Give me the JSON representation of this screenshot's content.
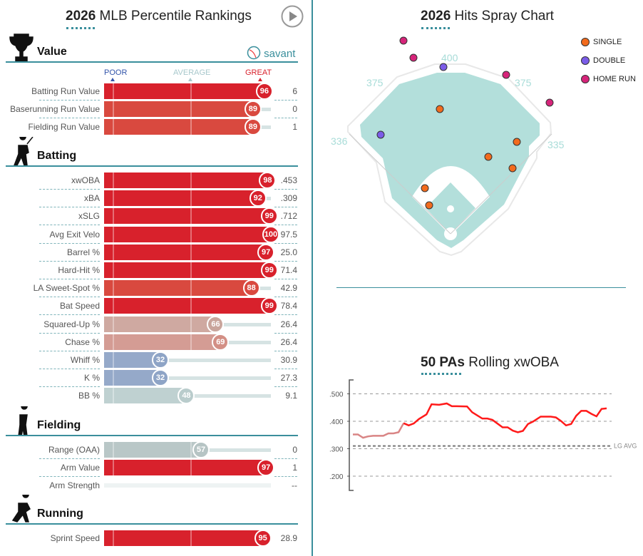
{
  "percentile": {
    "title_bold": "2026",
    "title_rest": " MLB Percentile Rankings",
    "play_icon": "play-icon",
    "brand": "savant",
    "scale": {
      "poor": "POOR",
      "average": "AVERAGE",
      "great": "GREAT"
    },
    "sections": [
      {
        "name": "Value",
        "icon": "trophy-icon",
        "rows": [
          {
            "label": "Batting Run Value",
            "pct": 96,
            "value": "6"
          },
          {
            "label": "Baserunning Run Value",
            "pct": 89,
            "value": "0"
          },
          {
            "label": "Fielding Run Value",
            "pct": 89,
            "value": "1"
          }
        ]
      },
      {
        "name": "Batting",
        "icon": "batter-icon",
        "rows": [
          {
            "label": "xwOBA",
            "pct": 98,
            "value": ".453"
          },
          {
            "label": "xBA",
            "pct": 92,
            "value": ".309"
          },
          {
            "label": "xSLG",
            "pct": 99,
            "value": ".712"
          },
          {
            "label": "Avg Exit Velo",
            "pct": 100,
            "value": "97.5"
          },
          {
            "label": "Barrel %",
            "pct": 97,
            "value": "25.0"
          },
          {
            "label": "Hard-Hit %",
            "pct": 99,
            "value": "71.4"
          },
          {
            "label": "LA Sweet-Spot %",
            "pct": 88,
            "value": "42.9"
          },
          {
            "label": "Bat Speed",
            "pct": 99,
            "value": "78.4"
          },
          {
            "label": "Squared-Up %",
            "pct": 66,
            "value": "26.4"
          },
          {
            "label": "Chase %",
            "pct": 69,
            "value": "26.4"
          },
          {
            "label": "Whiff %",
            "pct": 32,
            "value": "30.9"
          },
          {
            "label": "K %",
            "pct": 32,
            "value": "27.3"
          },
          {
            "label": "BB %",
            "pct": 48,
            "value": "9.1"
          }
        ]
      },
      {
        "name": "Fielding",
        "icon": "fielder-icon",
        "rows": [
          {
            "label": "Range (OAA)",
            "pct": 57,
            "value": "0"
          },
          {
            "label": "Arm Value",
            "pct": 97,
            "value": "1"
          },
          {
            "label": "Arm Strength",
            "pct": null,
            "value": "--"
          }
        ]
      },
      {
        "name": "Running",
        "icon": "runner-icon",
        "rows": [
          {
            "label": "Sprint Speed",
            "pct": 95,
            "value": "28.9"
          }
        ]
      }
    ]
  },
  "spray": {
    "title_bold": "2026",
    "title_rest": " Hits Spray Chart",
    "distances": {
      "cf": "400",
      "lc": "375",
      "rc": "375",
      "lf": "336",
      "rf": "335"
    },
    "legend": [
      {
        "label": "SINGLE",
        "color": "#f26b1d"
      },
      {
        "label": "DOUBLE",
        "color": "#7b5ce8"
      },
      {
        "label": "HOME RUN",
        "color": "#d6247a"
      }
    ],
    "hits": [
      {
        "type": 0,
        "pos": "LCF shallow"
      },
      {
        "type": 0,
        "pos": "RCF"
      },
      {
        "type": 0,
        "pos": "RC"
      },
      {
        "type": 0,
        "pos": "RF"
      },
      {
        "type": 0,
        "pos": "3B-SS"
      },
      {
        "type": 0,
        "pos": "3B"
      },
      {
        "type": 1,
        "pos": "CF wall"
      },
      {
        "type": 1,
        "pos": "LF"
      },
      {
        "type": 2,
        "pos": "LCF deep"
      },
      {
        "type": 2,
        "pos": "LCF"
      },
      {
        "type": 2,
        "pos": "RCF"
      },
      {
        "type": 2,
        "pos": "RF"
      }
    ]
  },
  "chart_data": {
    "type": "line",
    "title": "50 PAs Rolling xwOBA",
    "title_bold": "50 PAs",
    "title_rest": " Rolling xwOBA",
    "yticks": [
      ".500",
      ".400",
      ".300",
      ".200"
    ],
    "ylim": [
      0.15,
      0.55
    ],
    "lg_avg": 0.31,
    "lg_avg_label": "LG AVG",
    "x": [
      0,
      2,
      4,
      6,
      8,
      12,
      14,
      16,
      18,
      20,
      22,
      24,
      26,
      29,
      31,
      34,
      37,
      39,
      41,
      45,
      47,
      51,
      53,
      55,
      59,
      61,
      63,
      65,
      67,
      69,
      71,
      74,
      78,
      80,
      82,
      84,
      86,
      88,
      90,
      92,
      94,
      96,
      98,
      100
    ],
    "values": [
      0.352,
      0.352,
      0.34,
      0.345,
      0.347,
      0.347,
      0.356,
      0.356,
      0.36,
      0.393,
      0.385,
      0.392,
      0.408,
      0.425,
      0.462,
      0.46,
      0.465,
      0.455,
      0.455,
      0.454,
      0.433,
      0.41,
      0.41,
      0.405,
      0.378,
      0.378,
      0.366,
      0.36,
      0.365,
      0.39,
      0.399,
      0.417,
      0.417,
      0.414,
      0.401,
      0.385,
      0.39,
      0.42,
      0.438,
      0.438,
      0.427,
      0.418,
      0.445,
      0.447
    ],
    "early_count": 10,
    "colors": {
      "early": "#d98585",
      "main": "#ff1a1a"
    }
  }
}
